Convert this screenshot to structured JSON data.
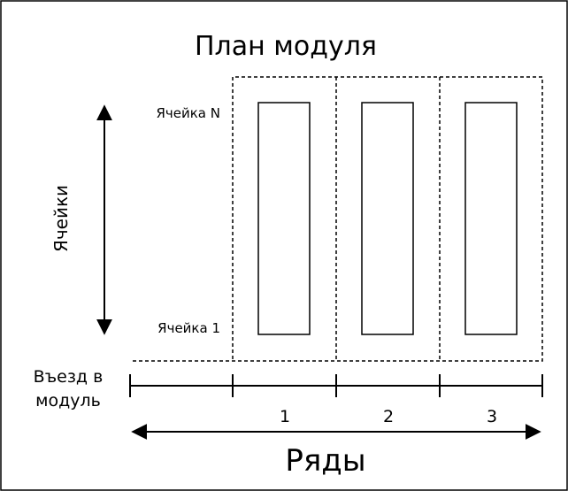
{
  "diagram": {
    "title": "План модуля",
    "cells_axis_label": "Ячейки",
    "cell_top_label": "Ячейка N",
    "cell_bottom_label": "Ячейка 1",
    "entry_label_line1": "Въезд в",
    "entry_label_line2": "модуль",
    "rows_axis_label": "Ряды",
    "rows": [
      {
        "number": "1"
      },
      {
        "number": "2"
      },
      {
        "number": "3"
      }
    ]
  },
  "colors": {
    "stroke": "#000000",
    "background": "#ffffff"
  }
}
